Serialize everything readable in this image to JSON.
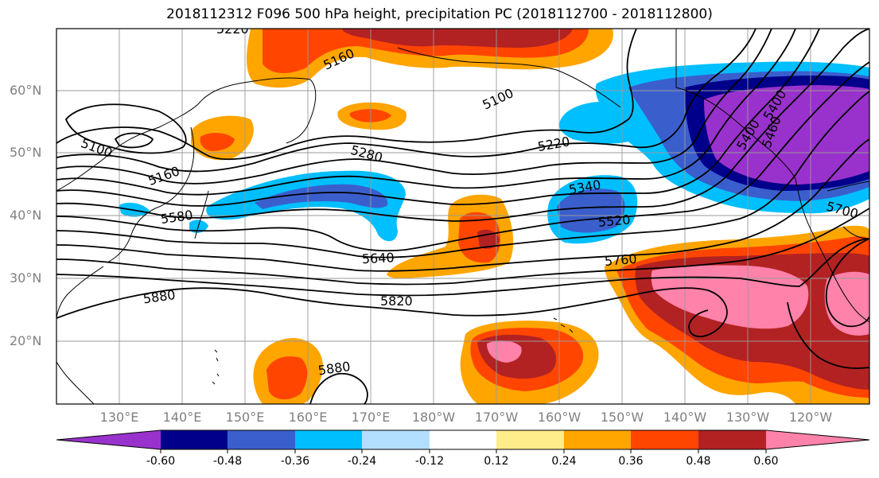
{
  "title": "2018112312 F096 500 hPa height, precipitation PC (2018112700 - 2018112800)",
  "latitude_labels": [
    "60°N",
    "50°N",
    "40°N",
    "30°N",
    "20°N"
  ],
  "longitude_labels": [
    "130°E",
    "140°E",
    "150°E",
    "160°E",
    "170°E",
    "180°W",
    "170°W",
    "160°W",
    "150°W",
    "140°W",
    "130°W",
    "120°W"
  ],
  "contour_labels": [
    "5220",
    "5160",
    "5100",
    "5100",
    "5160",
    "5280",
    "5220",
    "5340",
    "5400",
    "5460",
    "5580",
    "5640",
    "5520",
    "5760",
    "5700",
    "5880",
    "5820",
    "5880",
    "5400"
  ],
  "colorbar": {
    "tick_labels": [
      "-0.60",
      "-0.48",
      "-0.36",
      "-0.24",
      "-0.12",
      "0.12",
      "0.24",
      "0.36",
      "0.48",
      "0.60"
    ],
    "colors": [
      "#9932CC",
      "#00008B",
      "#3A5FCD",
      "#00BFFF",
      "#B2DFFF",
      "#FFFFFF",
      "#FFEC8B",
      "#FFA500",
      "#FF4500",
      "#B22222",
      "#FF82AB"
    ]
  }
}
